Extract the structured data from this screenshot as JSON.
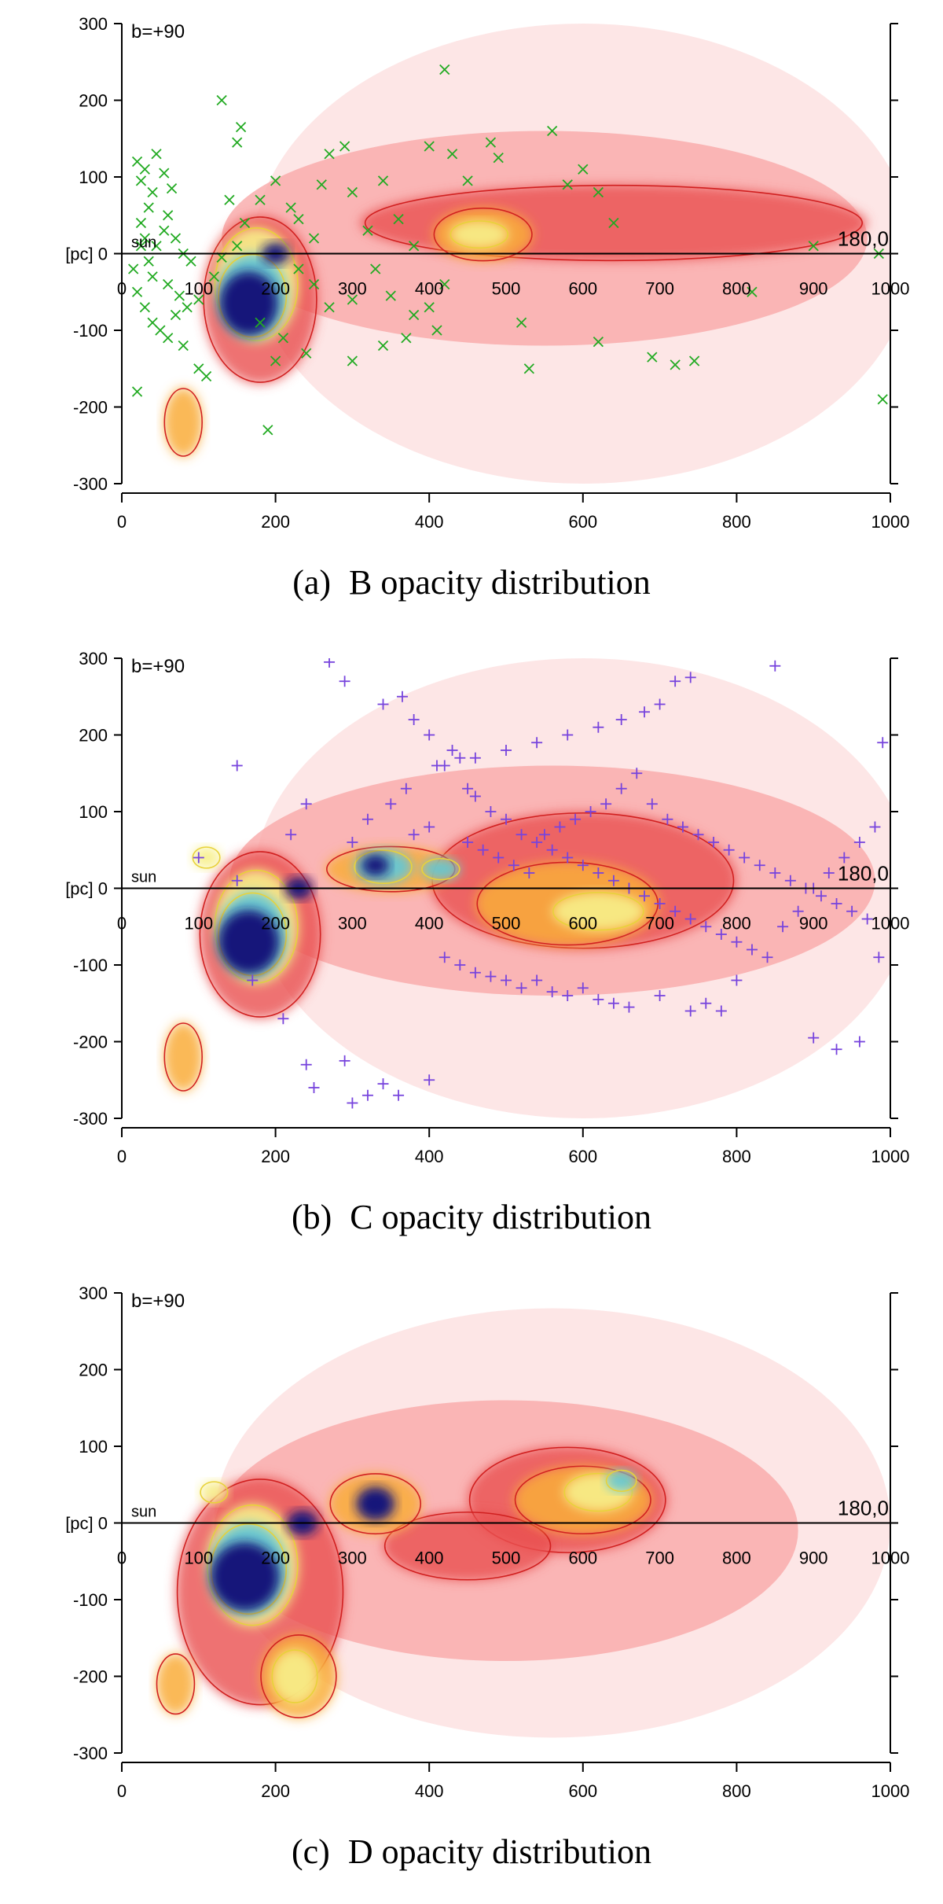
{
  "chart_data": [
    {
      "type": "heatmap",
      "id": "B",
      "title": "B opacity distribution",
      "caption_label": "(a)",
      "corner_label": "b=+90",
      "left_axis_label": "[pc]",
      "sun_label": "sun",
      "end_label": "180,0",
      "x_ticks": [
        0,
        200,
        400,
        600,
        800,
        1000
      ],
      "inline_x_ticks": [
        0,
        100,
        200,
        300,
        400,
        500,
        600,
        700,
        800,
        900,
        1000
      ],
      "y_ticks": [
        300,
        200,
        100,
        0,
        -100,
        -200,
        -300
      ],
      "xlim": [
        0,
        1000
      ],
      "ylim": [
        -300,
        300
      ],
      "marker": "x",
      "marker_color": "#22aa22",
      "blobs": [
        {
          "x": 600,
          "y": 0,
          "rx": 430,
          "ry": 300,
          "level": 1
        },
        {
          "x": 550,
          "y": 20,
          "rx": 420,
          "ry": 140,
          "level": 2
        },
        {
          "x": 180,
          "y": -60,
          "rx": 75,
          "ry": 110,
          "level": 3
        },
        {
          "x": 80,
          "y": -220,
          "rx": 25,
          "ry": 45,
          "level": 4
        },
        {
          "x": 640,
          "y": 40,
          "rx": 330,
          "ry": 50,
          "level": 3
        },
        {
          "x": 470,
          "y": 25,
          "rx": 65,
          "ry": 35,
          "level": 4
        },
        {
          "x": 465,
          "y": 25,
          "rx": 38,
          "ry": 18,
          "level": 5
        },
        {
          "x": 175,
          "y": -40,
          "rx": 55,
          "ry": 75,
          "level": 5
        },
        {
          "x": 170,
          "y": -55,
          "rx": 45,
          "ry": 55,
          "level": 6
        },
        {
          "x": 165,
          "y": -65,
          "rx": 38,
          "ry": 42,
          "level": 7
        },
        {
          "x": 200,
          "y": 0,
          "rx": 18,
          "ry": 14,
          "level": 7
        }
      ],
      "points": [
        [
          20,
          120
        ],
        [
          25,
          95
        ],
        [
          30,
          110
        ],
        [
          40,
          80
        ],
        [
          45,
          130
        ],
        [
          55,
          105
        ],
        [
          65,
          85
        ],
        [
          35,
          60
        ],
        [
          25,
          40
        ],
        [
          30,
          20
        ],
        [
          45,
          10
        ],
        [
          55,
          30
        ],
        [
          60,
          50
        ],
        [
          70,
          20
        ],
        [
          80,
          0
        ],
        [
          90,
          -10
        ],
        [
          15,
          -20
        ],
        [
          20,
          -50
        ],
        [
          30,
          -70
        ],
        [
          40,
          -90
        ],
        [
          50,
          -100
        ],
        [
          60,
          -110
        ],
        [
          70,
          -80
        ],
        [
          80,
          -120
        ],
        [
          35,
          -10
        ],
        [
          25,
          10
        ],
        [
          40,
          -30
        ],
        [
          60,
          -40
        ],
        [
          75,
          -55
        ],
        [
          85,
          -70
        ],
        [
          100,
          -60
        ],
        [
          100,
          -150
        ],
        [
          110,
          -160
        ],
        [
          20,
          -180
        ],
        [
          120,
          -30
        ],
        [
          130,
          -5
        ],
        [
          150,
          10
        ],
        [
          160,
          40
        ],
        [
          140,
          70
        ],
        [
          150,
          145
        ],
        [
          130,
          200
        ],
        [
          155,
          165
        ],
        [
          180,
          70
        ],
        [
          200,
          95
        ],
        [
          220,
          60
        ],
        [
          230,
          45
        ],
        [
          250,
          20
        ],
        [
          260,
          90
        ],
        [
          270,
          130
        ],
        [
          290,
          140
        ],
        [
          300,
          80
        ],
        [
          320,
          30
        ],
        [
          340,
          95
        ],
        [
          360,
          45
        ],
        [
          380,
          10
        ],
        [
          400,
          140
        ],
        [
          420,
          240
        ],
        [
          430,
          130
        ],
        [
          450,
          95
        ],
        [
          480,
          145
        ],
        [
          490,
          125
        ],
        [
          560,
          160
        ],
        [
          580,
          90
        ],
        [
          600,
          110
        ],
        [
          620,
          80
        ],
        [
          640,
          40
        ],
        [
          300,
          -60
        ],
        [
          330,
          -20
        ],
        [
          350,
          -55
        ],
        [
          380,
          -80
        ],
        [
          400,
          -70
        ],
        [
          420,
          -40
        ],
        [
          300,
          -140
        ],
        [
          340,
          -120
        ],
        [
          370,
          -110
        ],
        [
          410,
          -100
        ],
        [
          520,
          -90
        ],
        [
          530,
          -150
        ],
        [
          620,
          -115
        ],
        [
          690,
          -135
        ],
        [
          720,
          -145
        ],
        [
          745,
          -140
        ],
        [
          820,
          -50
        ],
        [
          900,
          10
        ],
        [
          985,
          0
        ],
        [
          990,
          -190
        ],
        [
          180,
          -90
        ],
        [
          200,
          -140
        ],
        [
          190,
          -230
        ],
        [
          210,
          -110
        ],
        [
          240,
          -130
        ],
        [
          250,
          -40
        ],
        [
          270,
          -70
        ],
        [
          230,
          -20
        ]
      ]
    },
    {
      "type": "heatmap",
      "id": "C",
      "title": "C opacity distribution",
      "caption_label": "(b)",
      "corner_label": "b=+90",
      "left_axis_label": "[pc]",
      "sun_label": "sun",
      "end_label": "180,0",
      "x_ticks": [
        0,
        200,
        400,
        600,
        800,
        1000
      ],
      "inline_x_ticks": [
        0,
        100,
        200,
        300,
        400,
        500,
        600,
        700,
        800,
        900,
        1000
      ],
      "y_ticks": [
        300,
        200,
        100,
        0,
        -100,
        -200,
        -300
      ],
      "xlim": [
        0,
        1000
      ],
      "ylim": [
        -300,
        300
      ],
      "marker": "+",
      "marker_color": "#7744dd",
      "blobs": [
        {
          "x": 600,
          "y": 0,
          "rx": 430,
          "ry": 300,
          "level": 1
        },
        {
          "x": 560,
          "y": 10,
          "rx": 420,
          "ry": 150,
          "level": 2
        },
        {
          "x": 180,
          "y": -60,
          "rx": 80,
          "ry": 110,
          "level": 3
        },
        {
          "x": 80,
          "y": -220,
          "rx": 25,
          "ry": 45,
          "level": 4
        },
        {
          "x": 600,
          "y": 10,
          "rx": 200,
          "ry": 90,
          "level": 3
        },
        {
          "x": 580,
          "y": -20,
          "rx": 120,
          "ry": 55,
          "level": 4
        },
        {
          "x": 620,
          "y": -30,
          "rx": 60,
          "ry": 25,
          "level": 5
        },
        {
          "x": 350,
          "y": 25,
          "rx": 85,
          "ry": 30,
          "level": 4
        },
        {
          "x": 340,
          "y": 28,
          "rx": 38,
          "ry": 22,
          "level": 6
        },
        {
          "x": 330,
          "y": 30,
          "rx": 18,
          "ry": 14,
          "level": 7
        },
        {
          "x": 415,
          "y": 25,
          "rx": 25,
          "ry": 14,
          "level": 6
        },
        {
          "x": 110,
          "y": 40,
          "rx": 18,
          "ry": 14,
          "level": 5
        },
        {
          "x": 175,
          "y": -50,
          "rx": 55,
          "ry": 75,
          "level": 5
        },
        {
          "x": 170,
          "y": -60,
          "rx": 45,
          "ry": 55,
          "level": 6
        },
        {
          "x": 165,
          "y": -70,
          "rx": 40,
          "ry": 42,
          "level": 7
        },
        {
          "x": 230,
          "y": 0,
          "rx": 18,
          "ry": 14,
          "level": 7
        }
      ],
      "points": [
        [
          270,
          295
        ],
        [
          290,
          270
        ],
        [
          340,
          240
        ],
        [
          365,
          250
        ],
        [
          380,
          220
        ],
        [
          400,
          200
        ],
        [
          410,
          160
        ],
        [
          430,
          180
        ],
        [
          440,
          170
        ],
        [
          450,
          130
        ],
        [
          460,
          120
        ],
        [
          480,
          100
        ],
        [
          500,
          90
        ],
        [
          520,
          70
        ],
        [
          540,
          60
        ],
        [
          560,
          50
        ],
        [
          580,
          40
        ],
        [
          600,
          30
        ],
        [
          620,
          20
        ],
        [
          640,
          10
        ],
        [
          660,
          0
        ],
        [
          680,
          -10
        ],
        [
          700,
          -20
        ],
        [
          720,
          -30
        ],
        [
          740,
          -40
        ],
        [
          760,
          -50
        ],
        [
          780,
          -60
        ],
        [
          800,
          -70
        ],
        [
          820,
          -80
        ],
        [
          840,
          -90
        ],
        [
          860,
          -50
        ],
        [
          880,
          -30
        ],
        [
          900,
          0
        ],
        [
          920,
          20
        ],
        [
          940,
          40
        ],
        [
          960,
          60
        ],
        [
          980,
          80
        ],
        [
          990,
          190
        ],
        [
          985,
          -90
        ],
        [
          960,
          -200
        ],
        [
          930,
          -210
        ],
        [
          900,
          -195
        ],
        [
          850,
          290
        ],
        [
          740,
          275
        ],
        [
          720,
          270
        ],
        [
          700,
          240
        ],
        [
          680,
          230
        ],
        [
          650,
          220
        ],
        [
          620,
          210
        ],
        [
          580,
          200
        ],
        [
          540,
          190
        ],
        [
          500,
          180
        ],
        [
          460,
          170
        ],
        [
          420,
          160
        ],
        [
          150,
          160
        ],
        [
          100,
          40
        ],
        [
          150,
          10
        ],
        [
          170,
          -120
        ],
        [
          210,
          -170
        ],
        [
          240,
          -230
        ],
        [
          250,
          -260
        ],
        [
          290,
          -225
        ],
        [
          300,
          -280
        ],
        [
          320,
          -270
        ],
        [
          340,
          -255
        ],
        [
          360,
          -270
        ],
        [
          400,
          -250
        ],
        [
          420,
          -90
        ],
        [
          440,
          -100
        ],
        [
          460,
          -110
        ],
        [
          480,
          -115
        ],
        [
          500,
          -120
        ],
        [
          520,
          -130
        ],
        [
          540,
          -120
        ],
        [
          560,
          -135
        ],
        [
          580,
          -140
        ],
        [
          600,
          -130
        ],
        [
          620,
          -145
        ],
        [
          640,
          -150
        ],
        [
          660,
          -155
        ],
        [
          700,
          -140
        ],
        [
          740,
          -160
        ],
        [
          760,
          -150
        ],
        [
          780,
          -160
        ],
        [
          800,
          -120
        ],
        [
          650,
          130
        ],
        [
          670,
          150
        ],
        [
          690,
          110
        ],
        [
          710,
          90
        ],
        [
          730,
          80
        ],
        [
          750,
          70
        ],
        [
          770,
          60
        ],
        [
          790,
          50
        ],
        [
          810,
          40
        ],
        [
          830,
          30
        ],
        [
          850,
          20
        ],
        [
          870,
          10
        ],
        [
          890,
          0
        ],
        [
          910,
          -10
        ],
        [
          930,
          -20
        ],
        [
          950,
          -30
        ],
        [
          970,
          -40
        ],
        [
          550,
          70
        ],
        [
          570,
          80
        ],
        [
          590,
          90
        ],
        [
          610,
          100
        ],
        [
          630,
          110
        ],
        [
          450,
          60
        ],
        [
          470,
          50
        ],
        [
          490,
          40
        ],
        [
          510,
          30
        ],
        [
          530,
          20
        ],
        [
          380,
          70
        ],
        [
          400,
          80
        ],
        [
          300,
          60
        ],
        [
          320,
          90
        ],
        [
          350,
          110
        ],
        [
          370,
          130
        ],
        [
          240,
          110
        ],
        [
          220,
          70
        ]
      ]
    },
    {
      "type": "heatmap",
      "id": "D",
      "title": "D opacity distribution",
      "caption_label": "(c)",
      "corner_label": "b=+90",
      "left_axis_label": "[pc]",
      "sun_label": "sun",
      "end_label": "180,0",
      "x_ticks": [
        0,
        200,
        400,
        600,
        800,
        1000
      ],
      "inline_x_ticks": [
        0,
        100,
        200,
        300,
        400,
        500,
        600,
        700,
        800,
        900,
        1000
      ],
      "y_ticks": [
        300,
        200,
        100,
        0,
        -100,
        -200,
        -300
      ],
      "xlim": [
        0,
        1000
      ],
      "ylim": [
        -300,
        300
      ],
      "marker": "none",
      "marker_color": "#000000",
      "blobs": [
        {
          "x": 560,
          "y": 0,
          "rx": 440,
          "ry": 280,
          "level": 1
        },
        {
          "x": 500,
          "y": -10,
          "rx": 380,
          "ry": 170,
          "level": 2
        },
        {
          "x": 180,
          "y": -90,
          "rx": 110,
          "ry": 150,
          "level": 3
        },
        {
          "x": 580,
          "y": 30,
          "rx": 130,
          "ry": 70,
          "level": 3
        },
        {
          "x": 450,
          "y": -30,
          "rx": 110,
          "ry": 45,
          "level": 3
        },
        {
          "x": 330,
          "y": 25,
          "rx": 60,
          "ry": 40,
          "level": 4
        },
        {
          "x": 600,
          "y": 30,
          "rx": 90,
          "ry": 45,
          "level": 4
        },
        {
          "x": 620,
          "y": 40,
          "rx": 45,
          "ry": 25,
          "level": 5
        },
        {
          "x": 650,
          "y": 55,
          "rx": 20,
          "ry": 14,
          "level": 6
        },
        {
          "x": 70,
          "y": -210,
          "rx": 25,
          "ry": 40,
          "level": 4
        },
        {
          "x": 230,
          "y": -200,
          "rx": 50,
          "ry": 55,
          "level": 4
        },
        {
          "x": 225,
          "y": -200,
          "rx": 30,
          "ry": 35,
          "level": 5
        },
        {
          "x": 330,
          "y": 25,
          "rx": 25,
          "ry": 22,
          "level": 7
        },
        {
          "x": 170,
          "y": -55,
          "rx": 60,
          "ry": 80,
          "level": 5
        },
        {
          "x": 165,
          "y": -60,
          "rx": 50,
          "ry": 60,
          "level": 6
        },
        {
          "x": 160,
          "y": -70,
          "rx": 45,
          "ry": 45,
          "level": 7
        },
        {
          "x": 235,
          "y": 0,
          "rx": 20,
          "ry": 16,
          "level": 7
        },
        {
          "x": 120,
          "y": 40,
          "rx": 18,
          "ry": 14,
          "level": 5
        }
      ],
      "points": []
    }
  ]
}
